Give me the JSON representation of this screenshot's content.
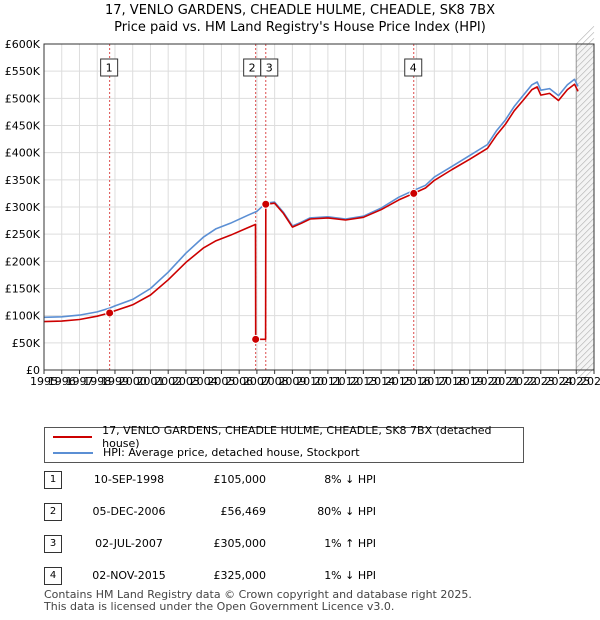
{
  "title_line1": "17, VENLO GARDENS, CHEADLE HULME, CHEADLE, SK8 7BX",
  "title_line2": "Price paid vs. HM Land Registry's House Price Index (HPI)",
  "colors": {
    "property": "#cc0000",
    "hpi": "#5b8fd4",
    "grid": "#dddddd",
    "shade": "#eef2fb",
    "marker_line": "#cc0000"
  },
  "chart_data": {
    "type": "line",
    "title": "Price paid vs. HM Land Registry's House Price Index (HPI)",
    "xlabel": "",
    "ylabel": "",
    "xlim": [
      1995,
      2026
    ],
    "ylim": [
      0,
      600000
    ],
    "yticks": [
      0,
      50000,
      100000,
      150000,
      200000,
      250000,
      300000,
      350000,
      400000,
      450000,
      500000,
      550000,
      600000
    ],
    "ytick_labels": [
      "£0",
      "£50K",
      "£100K",
      "£150K",
      "£200K",
      "£250K",
      "£300K",
      "£350K",
      "£400K",
      "£450K",
      "£500K",
      "£550K",
      "£600K"
    ],
    "xticks": [
      1995,
      1996,
      1997,
      1998,
      1999,
      2000,
      2001,
      2002,
      2003,
      2004,
      2005,
      2006,
      2007,
      2008,
      2009,
      2010,
      2011,
      2012,
      2013,
      2014,
      2015,
      2016,
      2017,
      2018,
      2019,
      2020,
      2021,
      2022,
      2023,
      2024,
      2025,
      2026
    ],
    "forecast_from": 2025.0,
    "series": [
      {
        "name": "HPI: Average price, detached house, Stockport",
        "x": [
          1995.0,
          1996.0,
          1997.0,
          1998.0,
          1998.7,
          1999.0,
          2000.0,
          2001.0,
          2002.0,
          2003.0,
          2004.0,
          2004.7,
          2005.5,
          2006.5,
          2007.0,
          2007.5,
          2008.0,
          2008.5,
          2009.0,
          2009.5,
          2010.0,
          2011.0,
          2012.0,
          2013.0,
          2014.0,
          2015.0,
          2015.8,
          2016.5,
          2017.0,
          2018.0,
          2019.0,
          2020.0,
          2020.5,
          2021.0,
          2021.5,
          2022.0,
          2022.5,
          2022.8,
          2023.0,
          2023.5,
          2024.0,
          2024.5,
          2024.9,
          2025.1
        ],
        "values": [
          97000,
          98000,
          101000,
          107000,
          114000,
          118000,
          130000,
          150000,
          180000,
          215000,
          245000,
          260000,
          270000,
          285000,
          292000,
          307000,
          309000,
          290000,
          265000,
          272000,
          280000,
          282000,
          278000,
          283000,
          298000,
          318000,
          330000,
          340000,
          355000,
          375000,
          395000,
          415000,
          440000,
          460000,
          485000,
          505000,
          525000,
          530000,
          515000,
          518000,
          505000,
          525000,
          535000,
          522000
        ]
      },
      {
        "name": "17, VENLO GARDENS, CHEADLE HULME, CHEADLE, SK8 7BX (detached house)",
        "x": [
          1995.0,
          1996.0,
          1997.0,
          1998.0,
          1998.7,
          1999.0,
          2000.0,
          2001.0,
          2002.0,
          2003.0,
          2004.0,
          2004.7,
          2005.5,
          2006.5,
          2006.92,
          2006.93,
          2007.49,
          2007.5,
          2008.0,
          2008.5,
          2009.0,
          2009.5,
          2010.0,
          2011.0,
          2012.0,
          2013.0,
          2014.0,
          2015.0,
          2015.84,
          2016.5,
          2017.0,
          2018.0,
          2019.0,
          2020.0,
          2020.5,
          2021.0,
          2021.5,
          2022.0,
          2022.5,
          2022.8,
          2023.0,
          2023.5,
          2024.0,
          2024.5,
          2024.9,
          2025.1
        ],
        "values": [
          89000,
          90000,
          93000,
          99000,
          105000,
          109000,
          120000,
          138000,
          166000,
          198000,
          225000,
          238000,
          248000,
          262000,
          268000,
          56469,
          56469,
          305000,
          307000,
          288000,
          263000,
          270000,
          278000,
          280000,
          276000,
          281000,
          295000,
          313000,
          325000,
          335000,
          349000,
          369000,
          388000,
          408000,
          432000,
          452000,
          477000,
          496000,
          516000,
          521000,
          506000,
          509000,
          496000,
          516000,
          526000,
          513000
        ]
      }
    ],
    "sales": [
      {
        "label": "1",
        "x": 1998.7,
        "value": 105000
      },
      {
        "label": "2",
        "x": 2006.93,
        "value": 56469
      },
      {
        "label": "3",
        "x": 2007.5,
        "value": 305000
      },
      {
        "label": "4",
        "x": 2015.84,
        "value": 325000
      }
    ]
  },
  "legend": {
    "property_label": "17, VENLO GARDENS, CHEADLE HULME, CHEADLE, SK8 7BX (detached house)",
    "hpi_label": "HPI: Average price, detached house, Stockport"
  },
  "transactions": [
    {
      "num": "1",
      "date": "10-SEP-1998",
      "price": "£105,000",
      "hpi": "8% ↓ HPI"
    },
    {
      "num": "2",
      "date": "05-DEC-2006",
      "price": "£56,469",
      "hpi": "80% ↓ HPI"
    },
    {
      "num": "3",
      "date": "02-JUL-2007",
      "price": "£305,000",
      "hpi": "1% ↑ HPI"
    },
    {
      "num": "4",
      "date": "02-NOV-2015",
      "price": "£325,000",
      "hpi": "1% ↓ HPI"
    }
  ],
  "footer_line1": "Contains HM Land Registry data © Crown copyright and database right 2025.",
  "footer_line2": "This data is licensed under the Open Government Licence v3.0."
}
